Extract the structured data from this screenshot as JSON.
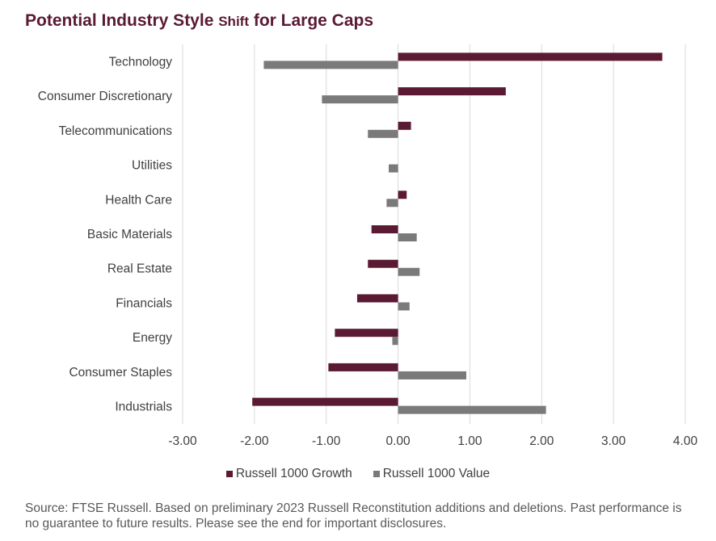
{
  "title": {
    "part1": "Potential Industry Style ",
    "part2": "Shift",
    "part3": " for Large Caps"
  },
  "colors": {
    "growth": "#5a1a33",
    "value": "#7a7a7a",
    "grid": "#d9d9d9"
  },
  "chart_data": {
    "type": "bar",
    "orientation": "horizontal",
    "title": "Potential Industry Style Shift for Large Caps",
    "xlabel": "",
    "ylabel": "",
    "xlim": [
      -3.0,
      4.0
    ],
    "xticks": [
      -3.0,
      -2.0,
      -1.0,
      0.0,
      1.0,
      2.0,
      3.0,
      4.0
    ],
    "xtick_labels": [
      "-3.00",
      "-2.00",
      "-1.00",
      "0.00",
      "1.00",
      "2.00",
      "3.00",
      "4.00"
    ],
    "grid": true,
    "legend": "bottom",
    "categories": [
      "Technology",
      "Consumer Discretionary",
      "Telecommunications",
      "Utilities",
      "Health Care",
      "Basic Materials",
      "Real Estate",
      "Financials",
      "Energy",
      "Consumer Staples",
      "Industrials"
    ],
    "series": [
      {
        "name": "Russell 1000 Growth",
        "values": [
          3.68,
          1.5,
          0.18,
          0.0,
          0.12,
          -0.37,
          -0.42,
          -0.57,
          -0.88,
          -0.97,
          -2.03
        ]
      },
      {
        "name": "Russell 1000 Value",
        "values": [
          -1.87,
          -1.06,
          -0.42,
          -0.13,
          -0.16,
          0.26,
          0.3,
          0.16,
          -0.08,
          0.95,
          2.06
        ]
      }
    ]
  },
  "legend": {
    "growth_label": "Russell 1000 Growth",
    "value_label": "Russell 1000 Value"
  },
  "source": "Source: FTSE Russell. Based on preliminary 2023 Russell Reconstitution additions and deletions. Past performance is no guarantee to future results. Please see the end for important disclosures."
}
